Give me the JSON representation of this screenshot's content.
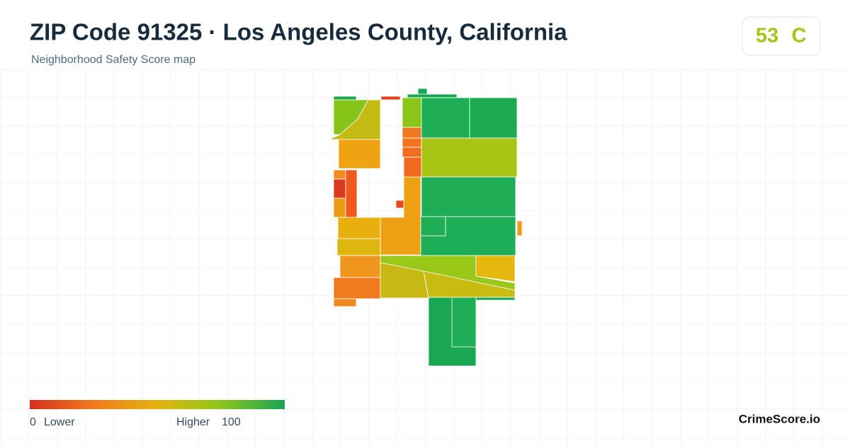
{
  "header": {
    "title": "ZIP Code 91325 · Los Angeles County, California",
    "subtitle": "Neighborhood Safety Score map"
  },
  "score": {
    "value": 53,
    "grade": "C"
  },
  "legend": {
    "min": 0,
    "min_label": "Lower",
    "max_label": "Higher",
    "max": 100
  },
  "brand": "CrimeScore.io"
}
